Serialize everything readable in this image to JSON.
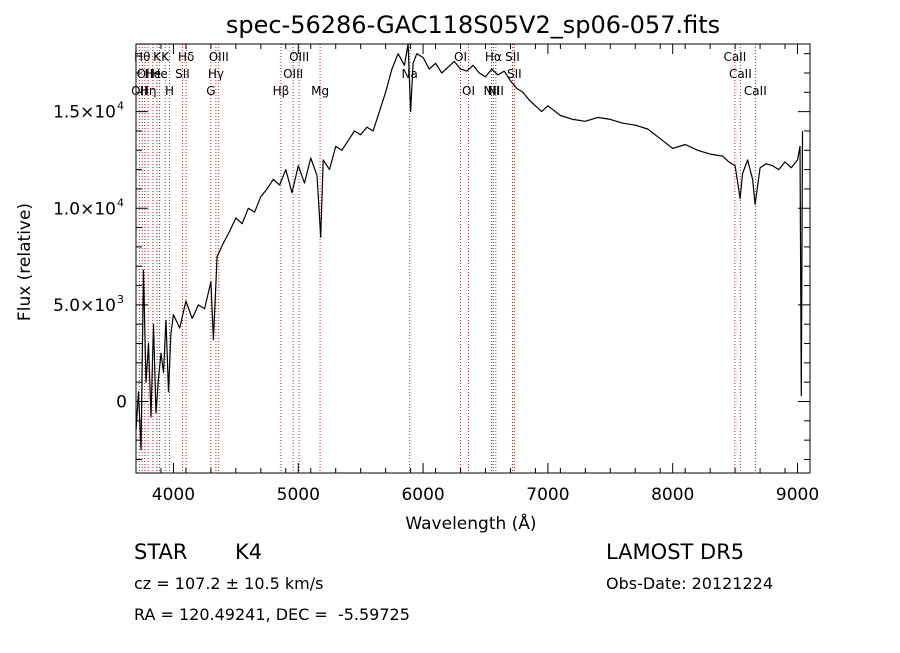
{
  "chart_data": {
    "type": "line",
    "title": "spec-56286-GAC118S05V2_sp06-057.fits",
    "xlabel": "Wavelength (Å)",
    "ylabel": "Flux (relative)",
    "xlim": [
      3700,
      9100
    ],
    "ylim": [
      -3700,
      18500
    ],
    "x_ticks": [
      {
        "value": 4000,
        "label": "4000"
      },
      {
        "value": 5000,
        "label": "5000"
      },
      {
        "value": 6000,
        "label": "6000"
      },
      {
        "value": 7000,
        "label": "7000"
      },
      {
        "value": 8000,
        "label": "8000"
      },
      {
        "value": 9000,
        "label": "9000"
      }
    ],
    "y_ticks": [
      {
        "value": 0,
        "label": "0",
        "exp": ""
      },
      {
        "value": 5000,
        "label": "5.0×10",
        "exp": "3"
      },
      {
        "value": 10000,
        "label": "1.0×10",
        "exp": "4"
      },
      {
        "value": 15000,
        "label": "1.5×10",
        "exp": "4"
      }
    ],
    "series": [
      {
        "color": "#000000",
        "points": [
          [
            3700,
            -1500
          ],
          [
            3720,
            500
          ],
          [
            3740,
            -2500
          ],
          [
            3760,
            6800
          ],
          [
            3780,
            1000
          ],
          [
            3800,
            3000
          ],
          [
            3820,
            -800
          ],
          [
            3840,
            4000
          ],
          [
            3860,
            -600
          ],
          [
            3880,
            1200
          ],
          [
            3900,
            2500
          ],
          [
            3920,
            1500
          ],
          [
            3940,
            4200
          ],
          [
            3960,
            500
          ],
          [
            3980,
            3500
          ],
          [
            4000,
            4500
          ],
          [
            4050,
            3800
          ],
          [
            4100,
            5200
          ],
          [
            4150,
            4300
          ],
          [
            4200,
            5000
          ],
          [
            4250,
            4800
          ],
          [
            4300,
            6200
          ],
          [
            4320,
            3200
          ],
          [
            4350,
            7500
          ],
          [
            4400,
            8200
          ],
          [
            4450,
            8800
          ],
          [
            4500,
            9500
          ],
          [
            4550,
            9200
          ],
          [
            4600,
            10000
          ],
          [
            4650,
            9800
          ],
          [
            4700,
            10600
          ],
          [
            4750,
            11000
          ],
          [
            4800,
            11500
          ],
          [
            4850,
            11200
          ],
          [
            4900,
            12000
          ],
          [
            4950,
            10800
          ],
          [
            5000,
            12200
          ],
          [
            5050,
            11300
          ],
          [
            5100,
            12600
          ],
          [
            5150,
            11700
          ],
          [
            5180,
            8500
          ],
          [
            5200,
            12500
          ],
          [
            5250,
            12000
          ],
          [
            5300,
            13200
          ],
          [
            5350,
            13000
          ],
          [
            5400,
            13500
          ],
          [
            5450,
            14000
          ],
          [
            5500,
            13800
          ],
          [
            5550,
            14200
          ],
          [
            5600,
            14000
          ],
          [
            5650,
            15000
          ],
          [
            5700,
            16000
          ],
          [
            5750,
            17200
          ],
          [
            5800,
            18000
          ],
          [
            5850,
            17400
          ],
          [
            5880,
            18500
          ],
          [
            5900,
            15000
          ],
          [
            5920,
            17500
          ],
          [
            5950,
            18000
          ],
          [
            6000,
            17800
          ],
          [
            6050,
            17200
          ],
          [
            6100,
            17500
          ],
          [
            6150,
            17000
          ],
          [
            6200,
            17300
          ],
          [
            6250,
            17600
          ],
          [
            6300,
            17200
          ],
          [
            6350,
            17100
          ],
          [
            6400,
            17400
          ],
          [
            6450,
            17000
          ],
          [
            6500,
            16800
          ],
          [
            6550,
            17200
          ],
          [
            6600,
            16900
          ],
          [
            6650,
            17100
          ],
          [
            6700,
            16600
          ],
          [
            6750,
            16200
          ],
          [
            6800,
            16000
          ],
          [
            6850,
            15600
          ],
          [
            6900,
            15300
          ],
          [
            6950,
            15000
          ],
          [
            7000,
            15300
          ],
          [
            7100,
            14800
          ],
          [
            7200,
            14600
          ],
          [
            7300,
            14500
          ],
          [
            7400,
            14700
          ],
          [
            7500,
            14600
          ],
          [
            7600,
            14400
          ],
          [
            7700,
            14300
          ],
          [
            7800,
            14100
          ],
          [
            7900,
            13600
          ],
          [
            8000,
            13100
          ],
          [
            8100,
            13300
          ],
          [
            8200,
            13000
          ],
          [
            8300,
            12800
          ],
          [
            8400,
            12700
          ],
          [
            8450,
            12400
          ],
          [
            8500,
            12200
          ],
          [
            8540,
            10500
          ],
          [
            8560,
            11800
          ],
          [
            8600,
            12500
          ],
          [
            8640,
            11500
          ],
          [
            8660,
            10200
          ],
          [
            8700,
            12100
          ],
          [
            8750,
            12300
          ],
          [
            8800,
            12200
          ],
          [
            8850,
            12000
          ],
          [
            8900,
            12400
          ],
          [
            8950,
            12100
          ],
          [
            9000,
            12500
          ],
          [
            9020,
            13200
          ],
          [
            9030,
            300
          ],
          [
            9040,
            14000
          ]
        ]
      }
    ],
    "lines": [
      {
        "x": 3727,
        "row": 2,
        "label": "OII"
      },
      {
        "x": 3750,
        "row": 0,
        "label": "Hθ"
      },
      {
        "x": 3771,
        "row": 1,
        "label": "OII"
      },
      {
        "x": 3798,
        "row": 2,
        "label": "Hη"
      },
      {
        "x": 3835,
        "row": 1,
        "label": "He"
      },
      {
        "x": 3869,
        "row": 0,
        "label": "K"
      },
      {
        "x": 3889,
        "row": 1,
        "label": "He"
      },
      {
        "x": 3934,
        "row": 0,
        "label": "K"
      },
      {
        "x": 3969,
        "row": 2,
        "label": "H"
      },
      {
        "x": 4072,
        "row": 1,
        "label": "SII"
      },
      {
        "x": 4102,
        "row": 0,
        "label": "Hδ"
      },
      {
        "x": 4300,
        "row": 2,
        "label": "G"
      },
      {
        "x": 4340,
        "row": 1,
        "label": "Hγ"
      },
      {
        "x": 4363,
        "row": 0,
        "label": "OIII"
      },
      {
        "x": 4861,
        "row": 2,
        "label": "Hβ"
      },
      {
        "x": 4959,
        "row": 1,
        "label": "OIII"
      },
      {
        "x": 5007,
        "row": 0,
        "label": "OIII"
      },
      {
        "x": 5175,
        "row": 2,
        "label": "Mg"
      },
      {
        "x": 5893,
        "row": 1,
        "label": "Na"
      },
      {
        "x": 6300,
        "row": 0,
        "label": "OI"
      },
      {
        "x": 6364,
        "row": 2,
        "label": "OI"
      },
      {
        "x": 6548,
        "row": 2,
        "label": "NII"
      },
      {
        "x": 6563,
        "row": 0,
        "label": "Hα"
      },
      {
        "x": 6583,
        "row": 2,
        "label": "NII"
      },
      {
        "x": 6716,
        "row": 0,
        "label": "SII"
      },
      {
        "x": 6731,
        "row": 1,
        "label": "SII"
      },
      {
        "x": 8498,
        "row": 0,
        "label": "CaII"
      },
      {
        "x": 8542,
        "row": 1,
        "label": "CaII"
      },
      {
        "x": 8662,
        "row": 2,
        "label": "CaII"
      }
    ]
  },
  "info": {
    "class_label": "STAR",
    "subclass": "K4",
    "survey": "LAMOST DR5",
    "cz": "cz = 107.2 ± 10.5 km/s",
    "obs_date": "Obs-Date: 20121224",
    "coords": "RA = 120.49241, DEC =  -5.59725"
  }
}
